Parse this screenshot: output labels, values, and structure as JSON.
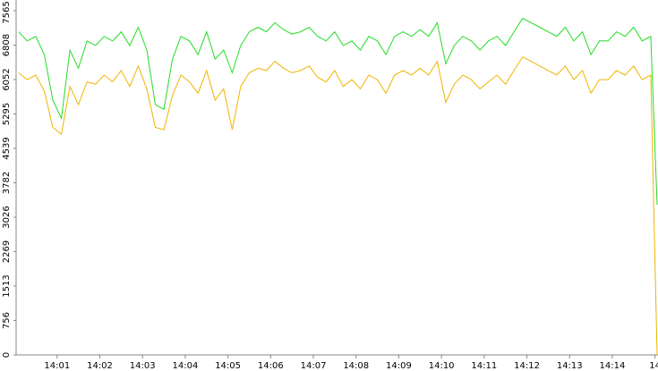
{
  "chart_data": {
    "type": "line",
    "x": [
      840.1,
      840.3,
      840.5,
      840.7,
      840.9,
      841.1,
      841.3,
      841.5,
      841.7,
      841.9,
      842.1,
      842.3,
      842.5,
      842.7,
      842.9,
      843.1,
      843.3,
      843.5,
      843.7,
      843.9,
      844.1,
      844.3,
      844.5,
      844.7,
      844.9,
      845.1,
      845.3,
      845.5,
      845.7,
      845.9,
      846.1,
      846.3,
      846.5,
      846.7,
      846.9,
      847.1,
      847.3,
      847.5,
      847.7,
      847.9,
      848.1,
      848.3,
      848.5,
      848.7,
      848.9,
      849.1,
      849.3,
      849.5,
      849.7,
      849.9,
      850.1,
      850.3,
      850.5,
      850.7,
      850.9,
      851.1,
      851.3,
      851.5,
      851.7,
      851.9,
      852.1,
      852.3,
      852.5,
      852.7,
      852.9,
      853.1,
      853.3,
      853.5,
      853.7,
      853.9,
      854.1,
      854.3,
      854.5,
      854.7,
      854.9,
      855.05
    ],
    "series": [
      {
        "color": "#22dd22",
        "values": [
          7100,
          6900,
          7000,
          6600,
          5600,
          5200,
          6700,
          6300,
          6900,
          6800,
          7000,
          6900,
          7100,
          6800,
          7200,
          6700,
          5500,
          5400,
          6500,
          7000,
          6900,
          6600,
          7100,
          6500,
          6700,
          6200,
          6800,
          7100,
          7200,
          7100,
          7300,
          7150,
          7050,
          7100,
          7200,
          7000,
          6900,
          7100,
          6800,
          6900,
          6700,
          7000,
          6900,
          6600,
          7000,
          7100,
          7000,
          7150,
          7000,
          7300,
          6400,
          6800,
          7000,
          6900,
          6700,
          6900,
          7000,
          6800,
          7100,
          7400,
          7300,
          7200,
          7100,
          7000,
          7200,
          6900,
          7100,
          6600,
          6900,
          6900,
          7100,
          7000,
          7200,
          6900,
          7000,
          3300
        ]
      },
      {
        "color": "#f0b400",
        "values": [
          6200,
          6050,
          6150,
          5800,
          5000,
          4850,
          5900,
          5500,
          6000,
          5950,
          6150,
          6000,
          6250,
          5900,
          6350,
          5850,
          5000,
          4950,
          5700,
          6150,
          6000,
          5750,
          6250,
          5600,
          5850,
          4950,
          5900,
          6200,
          6300,
          6250,
          6450,
          6300,
          6200,
          6250,
          6350,
          6100,
          6000,
          6250,
          5900,
          6050,
          5850,
          6150,
          6050,
          5750,
          6150,
          6250,
          6150,
          6300,
          6150,
          6450,
          5550,
          5950,
          6150,
          6050,
          5850,
          6000,
          6150,
          5950,
          6250,
          6550,
          6450,
          6350,
          6250,
          6150,
          6350,
          6050,
          6250,
          5750,
          6050,
          6050,
          6250,
          6150,
          6350,
          6050,
          6150,
          0
        ]
      }
    ],
    "xlim": [
      840.04,
      855.07
    ],
    "xticks": [
      {
        "value": 841,
        "label": "14:01"
      },
      {
        "value": 842,
        "label": "14:02"
      },
      {
        "value": 843,
        "label": "14:03"
      },
      {
        "value": 844,
        "label": "14:04"
      },
      {
        "value": 845,
        "label": "14:05"
      },
      {
        "value": 846,
        "label": "14:06"
      },
      {
        "value": 847,
        "label": "14:07"
      },
      {
        "value": 848,
        "label": "14:08"
      },
      {
        "value": 849,
        "label": "14:09"
      },
      {
        "value": 850,
        "label": "14:10"
      },
      {
        "value": 851,
        "label": "14:11"
      },
      {
        "value": 852,
        "label": "14:12"
      },
      {
        "value": 853,
        "label": "14:13"
      },
      {
        "value": 854,
        "label": "14:14"
      },
      {
        "value": 855,
        "label": "14"
      }
    ],
    "ylim": [
      0,
      7800
    ],
    "yticks": [
      0,
      756,
      1513,
      2269,
      3026,
      3782,
      4539,
      5295,
      6052,
      6808,
      7565
    ]
  }
}
